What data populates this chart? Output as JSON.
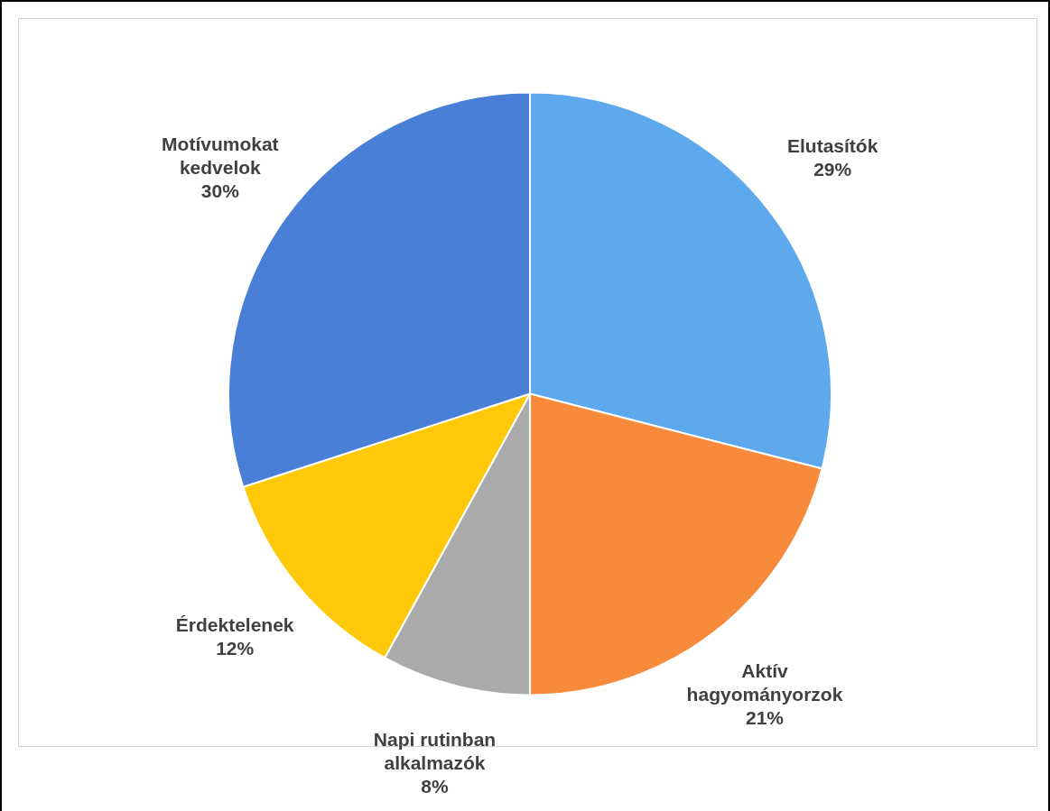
{
  "chart_data": {
    "type": "pie",
    "categories": [
      "Elutasítók",
      "Aktív hagyományorzok",
      "Napi rutinban alkalmazók",
      "Érdektelenek",
      "Motívumokat kedvelok"
    ],
    "values": [
      29,
      21,
      8,
      12,
      30
    ],
    "colors": [
      "#5ea9ec",
      "#f78a3b",
      "#aaaaaa",
      "#ffc90a",
      "#4a7fd8"
    ],
    "value_labels": [
      "29%",
      "21%",
      "8%",
      "12%",
      "30%"
    ],
    "legend": false
  }
}
